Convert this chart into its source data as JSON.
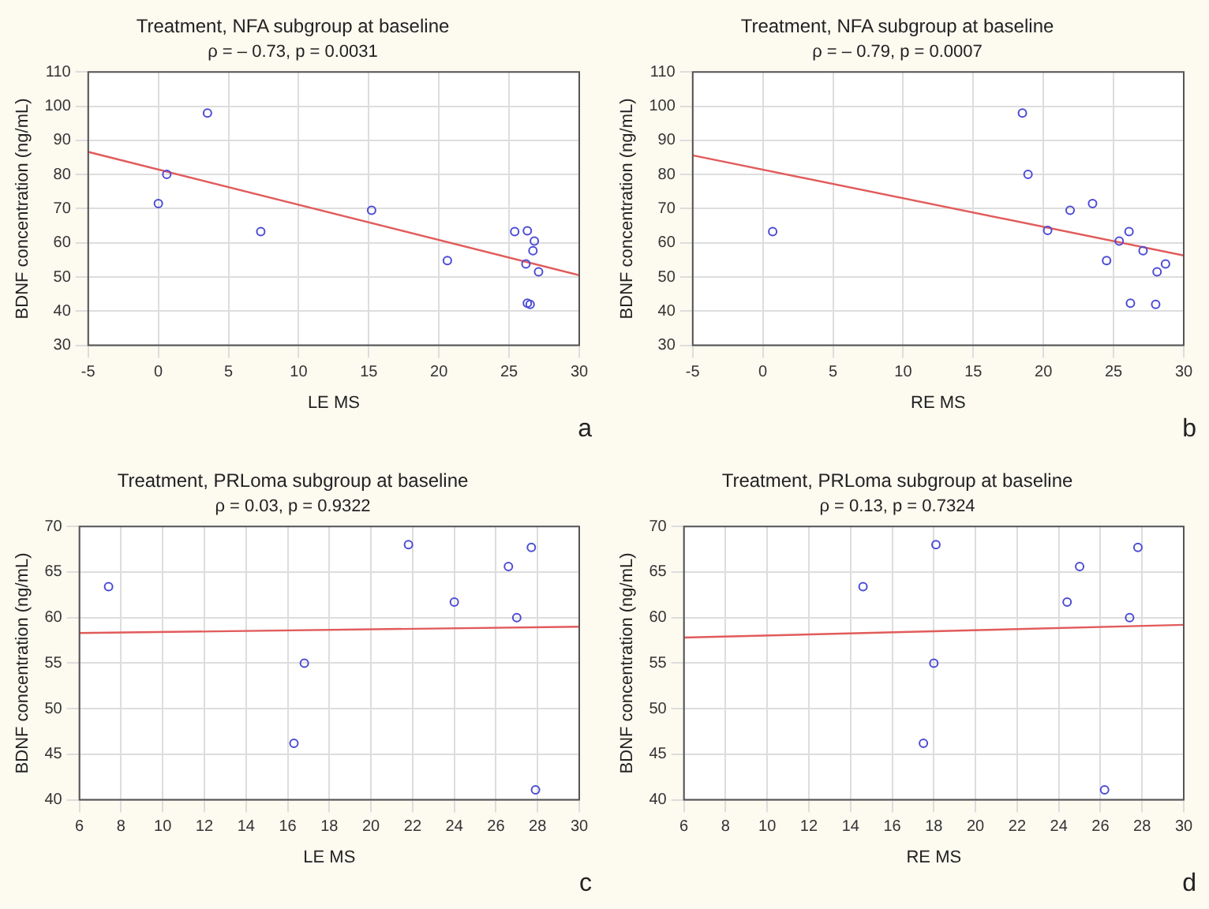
{
  "chart_data": [
    {
      "type": "scatter",
      "title": "Treatment, NFA subgroup at baseline",
      "subtitle": "ρ = – 0.73, p = 0.0031",
      "xlabel": "LE MS",
      "ylabel": "BDNF concentration (ng/mL)",
      "annotations": [
        "a"
      ],
      "xlim": [
        -5,
        30
      ],
      "xticks": [
        -5,
        0,
        5,
        10,
        15,
        20,
        25,
        30
      ],
      "ylim": [
        30,
        110
      ],
      "yticks": [
        30,
        40,
        50,
        60,
        70,
        80,
        90,
        100,
        110
      ],
      "grid": true,
      "legend": false,
      "series": [
        {
          "marker": "circle",
          "color": "#4b4bd6",
          "x": [
            0,
            0.6,
            3.5,
            7.3,
            15.2,
            20.6,
            25.4,
            26.3,
            26.8,
            26.7,
            26.2,
            27.1,
            26.3,
            26.5
          ],
          "values": [
            71.5,
            80,
            98,
            63.3,
            69.5,
            54.8,
            63.3,
            63.5,
            60.5,
            57.7,
            53.8,
            51.5,
            42.3,
            42
          ]
        },
        {
          "type": "line",
          "marker": "none",
          "color": "#e25b5b",
          "x": [
            -5,
            30
          ],
          "values": [
            86.6,
            50.5
          ]
        }
      ]
    },
    {
      "type": "scatter",
      "title": "Treatment, NFA subgroup at baseline",
      "subtitle": "ρ = – 0.79, p = 0.0007",
      "xlabel": "RE MS",
      "ylabel": "BDNF concentration (ng/mL)",
      "annotations": [
        "b"
      ],
      "xlim": [
        -5,
        30
      ],
      "xticks": [
        -5,
        0,
        5,
        10,
        15,
        20,
        25,
        30
      ],
      "ylim": [
        30,
        110
      ],
      "yticks": [
        30,
        40,
        50,
        60,
        70,
        80,
        90,
        100,
        110
      ],
      "grid": true,
      "legend": false,
      "series": [
        {
          "marker": "circle",
          "color": "#4b4bd6",
          "x": [
            0.7,
            18.5,
            18.9,
            20.3,
            21.9,
            23.5,
            24.5,
            25.4,
            26.1,
            27.1,
            28.1,
            28.7,
            26.2,
            28
          ],
          "values": [
            63.3,
            98,
            80,
            63.6,
            69.5,
            71.5,
            54.8,
            60.5,
            63.3,
            57.7,
            51.5,
            53.8,
            42.3,
            42
          ]
        },
        {
          "type": "line",
          "marker": "none",
          "color": "#e25b5b",
          "x": [
            -5,
            30
          ],
          "values": [
            85.6,
            56.3
          ]
        }
      ]
    },
    {
      "type": "scatter",
      "title": "Treatment, PRLoma subgroup at baseline",
      "subtitle": "ρ = 0.03, p = 0.9322",
      "xlabel": "LE MS",
      "ylabel": "BDNF concentration (ng/mL)",
      "annotations": [
        "c"
      ],
      "xlim": [
        6,
        30
      ],
      "xticks": [
        6,
        8,
        10,
        12,
        14,
        16,
        18,
        20,
        22,
        24,
        26,
        28,
        30
      ],
      "ylim": [
        40,
        70
      ],
      "yticks": [
        40,
        45,
        50,
        55,
        60,
        65,
        70
      ],
      "grid": true,
      "legend": false,
      "series": [
        {
          "marker": "circle",
          "color": "#4b4bd6",
          "x": [
            7.4,
            16.3,
            16.8,
            21.8,
            24,
            26.6,
            27,
            27.7,
            27.9
          ],
          "values": [
            63.4,
            46.2,
            55,
            68,
            61.7,
            65.6,
            60,
            67.7,
            41.1
          ]
        },
        {
          "type": "line",
          "marker": "none",
          "color": "#e25b5b",
          "x": [
            6,
            30
          ],
          "values": [
            58.3,
            59
          ]
        }
      ]
    },
    {
      "type": "scatter",
      "title": "Treatment, PRLoma subgroup at baseline",
      "subtitle": "ρ = 0.13, p = 0.7324",
      "xlabel": "RE MS",
      "ylabel": "BDNF concentration (ng/mL)",
      "annotations": [
        "d"
      ],
      "xlim": [
        6,
        30
      ],
      "xticks": [
        6,
        8,
        10,
        12,
        14,
        16,
        18,
        20,
        22,
        24,
        26,
        28,
        30
      ],
      "ylim": [
        40,
        70
      ],
      "yticks": [
        40,
        45,
        50,
        55,
        60,
        65,
        70
      ],
      "grid": true,
      "legend": false,
      "series": [
        {
          "marker": "circle",
          "color": "#4b4bd6",
          "x": [
            14.6,
            17.5,
            18,
            18.1,
            24.4,
            25,
            27.4,
            27.8,
            26.2
          ],
          "values": [
            63.4,
            46.2,
            55,
            68,
            61.7,
            65.6,
            60,
            67.7,
            41.1
          ]
        },
        {
          "type": "line",
          "marker": "none",
          "color": "#e25b5b",
          "x": [
            6,
            30
          ],
          "values": [
            57.8,
            59.2
          ]
        }
      ]
    }
  ]
}
